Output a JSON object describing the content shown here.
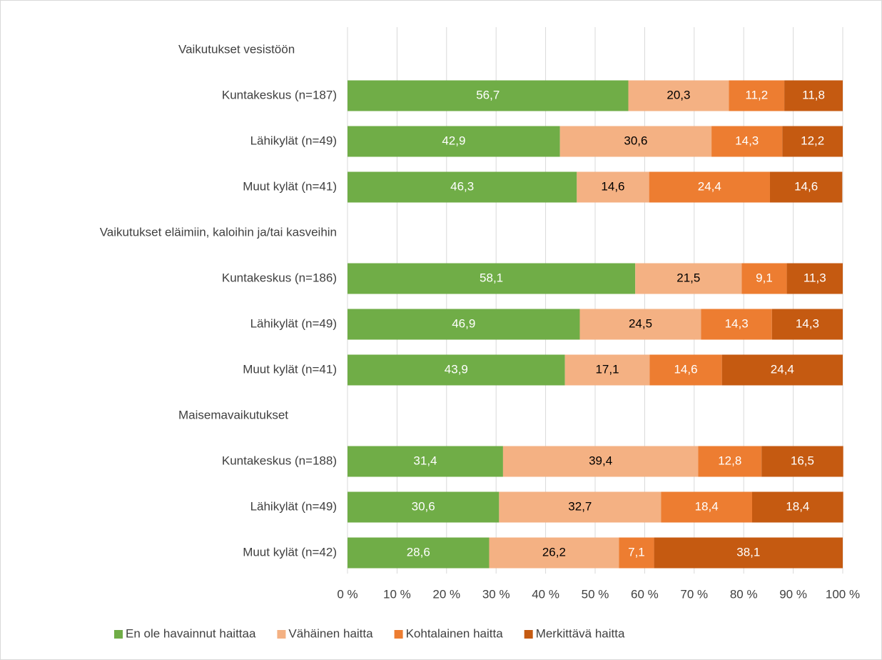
{
  "chart_data": {
    "type": "stacked_bar_horizontal",
    "categories": [
      "Vaikutukset vesistöön",
      "Kuntakeskus (n=187)",
      "Lähikylät (n=49)",
      "Muut kylät (n=41)",
      "Vaikutukset eläimiin, kaloihin ja/tai kasveihin",
      "Kuntakeskus (n=186)",
      "Lähikylät (n=49)",
      "Muut kylät (n=41)",
      "Maisemavaikutukset",
      "Kuntakeskus (n=188)",
      "Lähikylät (n=49)",
      "Muut kylät (n=42)"
    ],
    "series": [
      {
        "name": "En ole havainnut haittaa",
        "color": "#70ad47",
        "values": [
          null,
          56.7,
          42.9,
          46.3,
          null,
          58.1,
          46.9,
          43.9,
          null,
          31.4,
          30.6,
          28.6
        ],
        "value_labels": [
          null,
          "56,7",
          "42,9",
          "46,3",
          null,
          "58,1",
          "46,9",
          "43,9",
          null,
          "31,4",
          "30,6",
          "28,6"
        ]
      },
      {
        "name": "Vähäinen haitta",
        "color": "#f4b183",
        "values": [
          null,
          20.3,
          30.6,
          14.6,
          null,
          21.5,
          24.5,
          17.1,
          null,
          39.4,
          32.7,
          26.2
        ],
        "value_labels": [
          null,
          "20,3",
          "30,6",
          "14,6",
          null,
          "21,5",
          "24,5",
          "17,1",
          null,
          "39,4",
          "32,7",
          "26,2"
        ]
      },
      {
        "name": "Kohtalainen haitta",
        "color": "#ed7d31",
        "values": [
          null,
          11.2,
          14.3,
          24.4,
          null,
          9.1,
          14.3,
          14.6,
          null,
          12.8,
          18.4,
          7.1
        ],
        "value_labels": [
          null,
          "11,2",
          "14,3",
          "24,4",
          null,
          "9,1",
          "14,3",
          "14,6",
          null,
          "12,8",
          "18,4",
          "7,1"
        ]
      },
      {
        "name": "Merkittävä haitta",
        "color": "#c55a11",
        "values": [
          null,
          11.8,
          12.2,
          14.6,
          null,
          11.3,
          14.3,
          24.4,
          null,
          16.5,
          18.4,
          38.1
        ],
        "value_labels": [
          null,
          "11,8",
          "12,2",
          "14,6",
          null,
          "11,3",
          "14,3",
          "24,4",
          null,
          "16,5",
          "18,4",
          "38,1"
        ]
      }
    ],
    "xlim": [
      0,
      100
    ],
    "xticks": [
      {
        "value": 0,
        "label": "0 %"
      },
      {
        "value": 10,
        "label": "10 %"
      },
      {
        "value": 20,
        "label": "20 %"
      },
      {
        "value": 30,
        "label": "30 %"
      },
      {
        "value": 40,
        "label": "40 %"
      },
      {
        "value": 50,
        "label": "50 %"
      },
      {
        "value": 60,
        "label": "60 %"
      },
      {
        "value": 70,
        "label": "70 %"
      },
      {
        "value": 80,
        "label": "80 %"
      },
      {
        "value": 90,
        "label": "90 %"
      },
      {
        "value": 100,
        "label": "100 %"
      }
    ],
    "grid": true,
    "legend": "bottom"
  }
}
